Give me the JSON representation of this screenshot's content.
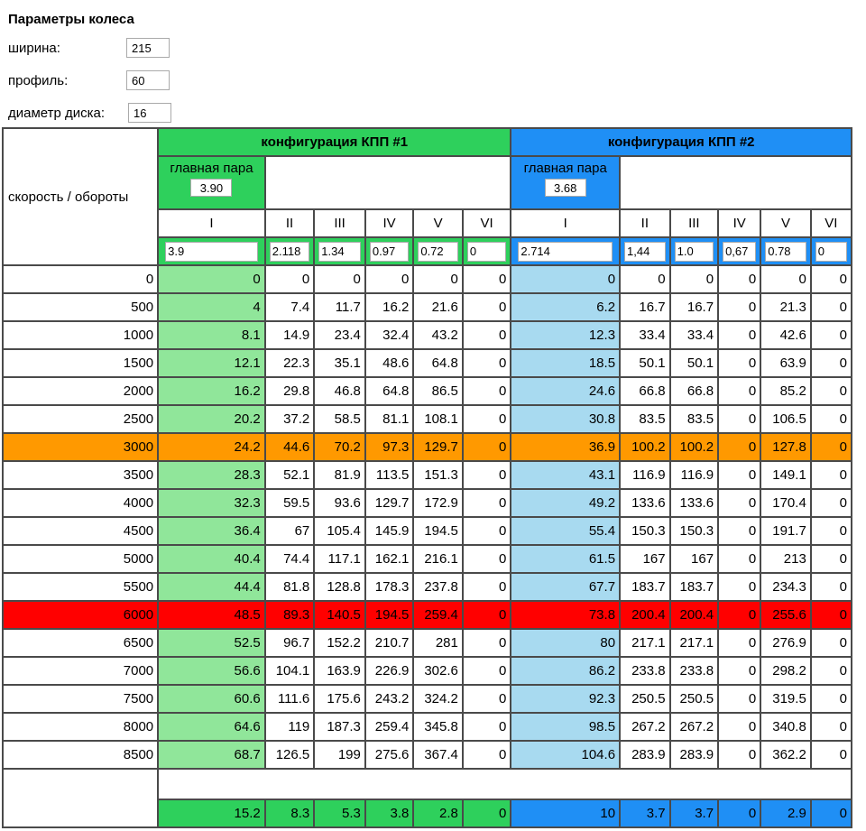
{
  "params": {
    "title": "Параметры колеса",
    "width_label": "ширина:",
    "width_value": "215",
    "profile_label": "профиль:",
    "profile_value": "60",
    "disk_label": "диаметр диска:",
    "disk_value": "16"
  },
  "table": {
    "corner_label": "скорость / обороты",
    "config1_title": "конфигурация КПП #1",
    "config2_title": "конфигурация КПП #2",
    "main_pair_label": "главная пара",
    "main_pair1": "3.90",
    "main_pair2": "3.68",
    "gears": [
      "I",
      "II",
      "III",
      "IV",
      "V",
      "VI"
    ],
    "ratios1": [
      "3.9",
      "2.118",
      "1.34",
      "0.97",
      "0.72",
      "0"
    ],
    "ratios2": [
      "2.714",
      "1,44",
      "1.0",
      "0,67",
      "0.78",
      "0"
    ],
    "rows": [
      {
        "rpm": "0",
        "c1": [
          "0",
          "0",
          "0",
          "0",
          "0",
          "0"
        ],
        "c2": [
          "0",
          "0",
          "0",
          "0",
          "0",
          "0"
        ],
        "hl": ""
      },
      {
        "rpm": "500",
        "c1": [
          "4",
          "7.4",
          "11.7",
          "16.2",
          "21.6",
          "0"
        ],
        "c2": [
          "6.2",
          "16.7",
          "16.7",
          "0",
          "21.3",
          "0"
        ],
        "hl": ""
      },
      {
        "rpm": "1000",
        "c1": [
          "8.1",
          "14.9",
          "23.4",
          "32.4",
          "43.2",
          "0"
        ],
        "c2": [
          "12.3",
          "33.4",
          "33.4",
          "0",
          "42.6",
          "0"
        ],
        "hl": ""
      },
      {
        "rpm": "1500",
        "c1": [
          "12.1",
          "22.3",
          "35.1",
          "48.6",
          "64.8",
          "0"
        ],
        "c2": [
          "18.5",
          "50.1",
          "50.1",
          "0",
          "63.9",
          "0"
        ],
        "hl": ""
      },
      {
        "rpm": "2000",
        "c1": [
          "16.2",
          "29.8",
          "46.8",
          "64.8",
          "86.5",
          "0"
        ],
        "c2": [
          "24.6",
          "66.8",
          "66.8",
          "0",
          "85.2",
          "0"
        ],
        "hl": ""
      },
      {
        "rpm": "2500",
        "c1": [
          "20.2",
          "37.2",
          "58.5",
          "81.1",
          "108.1",
          "0"
        ],
        "c2": [
          "30.8",
          "83.5",
          "83.5",
          "0",
          "106.5",
          "0"
        ],
        "hl": ""
      },
      {
        "rpm": "3000",
        "c1": [
          "24.2",
          "44.6",
          "70.2",
          "97.3",
          "129.7",
          "0"
        ],
        "c2": [
          "36.9",
          "100.2",
          "100.2",
          "0",
          "127.8",
          "0"
        ],
        "hl": "orange"
      },
      {
        "rpm": "3500",
        "c1": [
          "28.3",
          "52.1",
          "81.9",
          "113.5",
          "151.3",
          "0"
        ],
        "c2": [
          "43.1",
          "116.9",
          "116.9",
          "0",
          "149.1",
          "0"
        ],
        "hl": ""
      },
      {
        "rpm": "4000",
        "c1": [
          "32.3",
          "59.5",
          "93.6",
          "129.7",
          "172.9",
          "0"
        ],
        "c2": [
          "49.2",
          "133.6",
          "133.6",
          "0",
          "170.4",
          "0"
        ],
        "hl": ""
      },
      {
        "rpm": "4500",
        "c1": [
          "36.4",
          "67",
          "105.4",
          "145.9",
          "194.5",
          "0"
        ],
        "c2": [
          "55.4",
          "150.3",
          "150.3",
          "0",
          "191.7",
          "0"
        ],
        "hl": ""
      },
      {
        "rpm": "5000",
        "c1": [
          "40.4",
          "74.4",
          "117.1",
          "162.1",
          "216.1",
          "0"
        ],
        "c2": [
          "61.5",
          "167",
          "167",
          "0",
          "213",
          "0"
        ],
        "hl": ""
      },
      {
        "rpm": "5500",
        "c1": [
          "44.4",
          "81.8",
          "128.8",
          "178.3",
          "237.8",
          "0"
        ],
        "c2": [
          "67.7",
          "183.7",
          "183.7",
          "0",
          "234.3",
          "0"
        ],
        "hl": ""
      },
      {
        "rpm": "6000",
        "c1": [
          "48.5",
          "89.3",
          "140.5",
          "194.5",
          "259.4",
          "0"
        ],
        "c2": [
          "73.8",
          "200.4",
          "200.4",
          "0",
          "255.6",
          "0"
        ],
        "hl": "red"
      },
      {
        "rpm": "6500",
        "c1": [
          "52.5",
          "96.7",
          "152.2",
          "210.7",
          "281",
          "0"
        ],
        "c2": [
          "80",
          "217.1",
          "217.1",
          "0",
          "276.9",
          "0"
        ],
        "hl": ""
      },
      {
        "rpm": "7000",
        "c1": [
          "56.6",
          "104.1",
          "163.9",
          "226.9",
          "302.6",
          "0"
        ],
        "c2": [
          "86.2",
          "233.8",
          "233.8",
          "0",
          "298.2",
          "0"
        ],
        "hl": ""
      },
      {
        "rpm": "7500",
        "c1": [
          "60.6",
          "111.6",
          "175.6",
          "243.2",
          "324.2",
          "0"
        ],
        "c2": [
          "92.3",
          "250.5",
          "250.5",
          "0",
          "319.5",
          "0"
        ],
        "hl": ""
      },
      {
        "rpm": "8000",
        "c1": [
          "64.6",
          "119",
          "187.3",
          "259.4",
          "345.8",
          "0"
        ],
        "c2": [
          "98.5",
          "267.2",
          "267.2",
          "0",
          "340.8",
          "0"
        ],
        "hl": ""
      },
      {
        "rpm": "8500",
        "c1": [
          "68.7",
          "126.5",
          "199",
          "275.6",
          "367.4",
          "0"
        ],
        "c2": [
          "104.6",
          "283.9",
          "283.9",
          "0",
          "362.2",
          "0"
        ],
        "hl": ""
      }
    ],
    "footer1": [
      "15.2",
      "8.3",
      "5.3",
      "3.8",
      "2.8",
      "0"
    ],
    "footer2": [
      "10",
      "3.7",
      "3.7",
      "0",
      "2.9",
      "0"
    ]
  },
  "colors": {
    "config1_green": "#2ed05c",
    "config2_blue": "#1f8ff5",
    "light_green": "#90e69a",
    "light_blue": "#a8daf0",
    "highlight_orange": "#ff9900",
    "highlight_red": "#ff0000"
  }
}
